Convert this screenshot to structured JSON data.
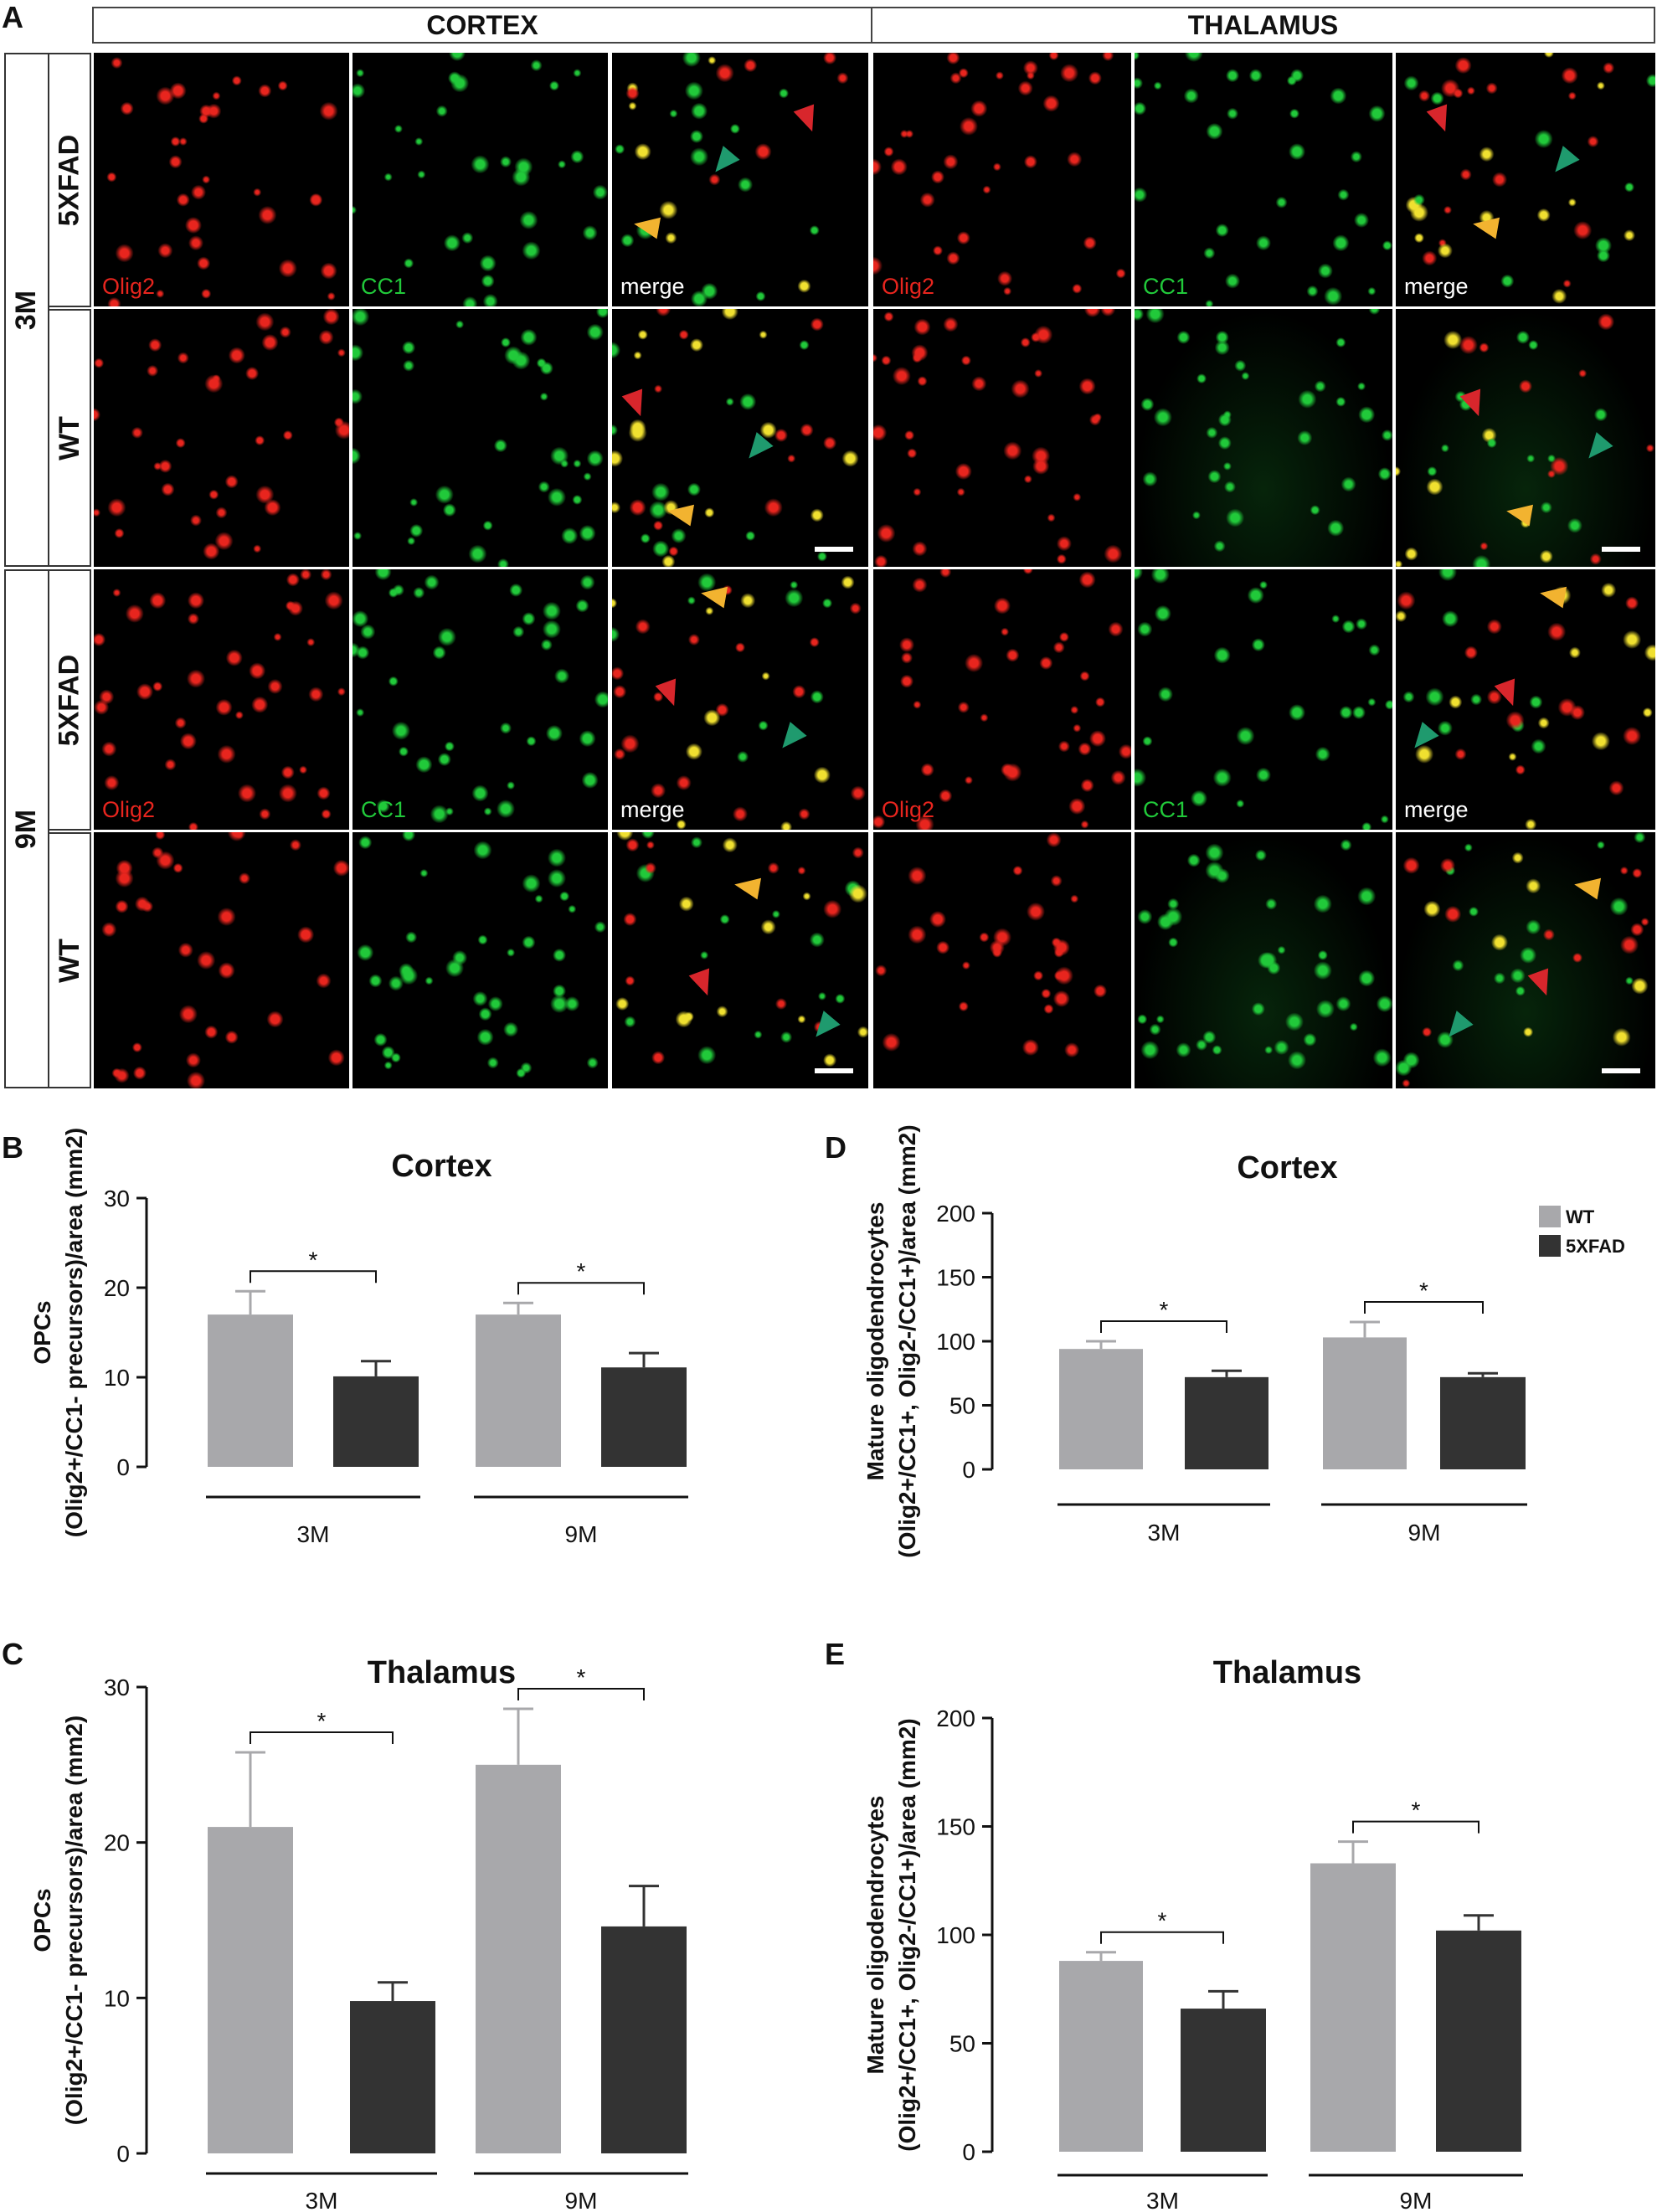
{
  "figure": {
    "panel_letters": [
      "A",
      "B",
      "C",
      "D",
      "E"
    ],
    "regions": [
      "CORTEX",
      "THALAMUS"
    ],
    "ages": [
      "3M",
      "9M"
    ],
    "genotypes": [
      "5XFAD",
      "WT"
    ],
    "channel_labels": {
      "red": "Olig2",
      "green": "CC1",
      "merge": "merge"
    },
    "colors": {
      "olig2": "#e8251e",
      "cc1": "#21c93a",
      "merge_label": "#ffffff",
      "arrow_red": "#d8262c",
      "arrow_green": "#1f9a6e",
      "arrow_yellow": "#f2b330",
      "wt_bar": "#a8a8ab",
      "fxad_bar": "#333333"
    }
  },
  "chart_data": [
    {
      "id": "B",
      "type": "bar",
      "title": "Cortex",
      "ylabel_lines": [
        "OPCs",
        "(Olig2+/CC1- precursors)/area (mm2)"
      ],
      "categories": [
        "3M",
        "9M"
      ],
      "ylim": [
        0,
        30
      ],
      "yticks": [
        0,
        10,
        20,
        30
      ],
      "series": [
        {
          "name": "WT",
          "values": [
            17.0,
            17.0
          ],
          "errors": [
            2.6,
            1.3
          ]
        },
        {
          "name": "5XFAD",
          "values": [
            10.1,
            11.1
          ],
          "errors": [
            1.7,
            1.6
          ]
        }
      ],
      "significance": [
        "*",
        "*"
      ],
      "legend": false
    },
    {
      "id": "C",
      "type": "bar",
      "title": "Thalamus",
      "ylabel_lines": [
        "OPCs",
        "(Olig2+/CC1- precursors)/area (mm2)"
      ],
      "categories": [
        "3M",
        "9M"
      ],
      "ylim": [
        0,
        30
      ],
      "yticks": [
        0,
        10,
        20,
        30
      ],
      "series": [
        {
          "name": "WT",
          "values": [
            21.0,
            25.0
          ],
          "errors": [
            4.8,
            3.6
          ]
        },
        {
          "name": "5XFAD",
          "values": [
            9.8,
            14.6
          ],
          "errors": [
            1.2,
            2.6
          ]
        }
      ],
      "significance": [
        "*",
        "*"
      ],
      "legend": false
    },
    {
      "id": "D",
      "type": "bar",
      "title": "Cortex",
      "ylabel_lines": [
        "Mature oligodendrocytes",
        "(Olig2+/CC1+, Olig2-/CC1+)/area (mm2)"
      ],
      "categories": [
        "3M",
        "9M"
      ],
      "ylim": [
        0,
        200
      ],
      "yticks": [
        0,
        50,
        100,
        150,
        200
      ],
      "series": [
        {
          "name": "WT",
          "values": [
            94,
            103
          ],
          "errors": [
            6,
            12
          ]
        },
        {
          "name": "5XFAD",
          "values": [
            72,
            72
          ],
          "errors": [
            5,
            3
          ]
        }
      ],
      "significance": [
        "*",
        "*"
      ],
      "legend": true,
      "legend_position": "top-right"
    },
    {
      "id": "E",
      "type": "bar",
      "title": "Thalamus",
      "ylabel_lines": [
        "Mature oligodendrocytes",
        "(Olig2+/CC1+, Olig2-/CC1+)/area (mm2)"
      ],
      "categories": [
        "3M",
        "9M"
      ],
      "ylim": [
        0,
        200
      ],
      "yticks": [
        0,
        50,
        100,
        150,
        200
      ],
      "series": [
        {
          "name": "WT",
          "values": [
            88,
            133
          ],
          "errors": [
            4,
            10
          ]
        },
        {
          "name": "5XFAD",
          "values": [
            66,
            102
          ],
          "errors": [
            8,
            7
          ]
        }
      ],
      "significance": [
        "*",
        "*"
      ],
      "legend": false
    }
  ]
}
